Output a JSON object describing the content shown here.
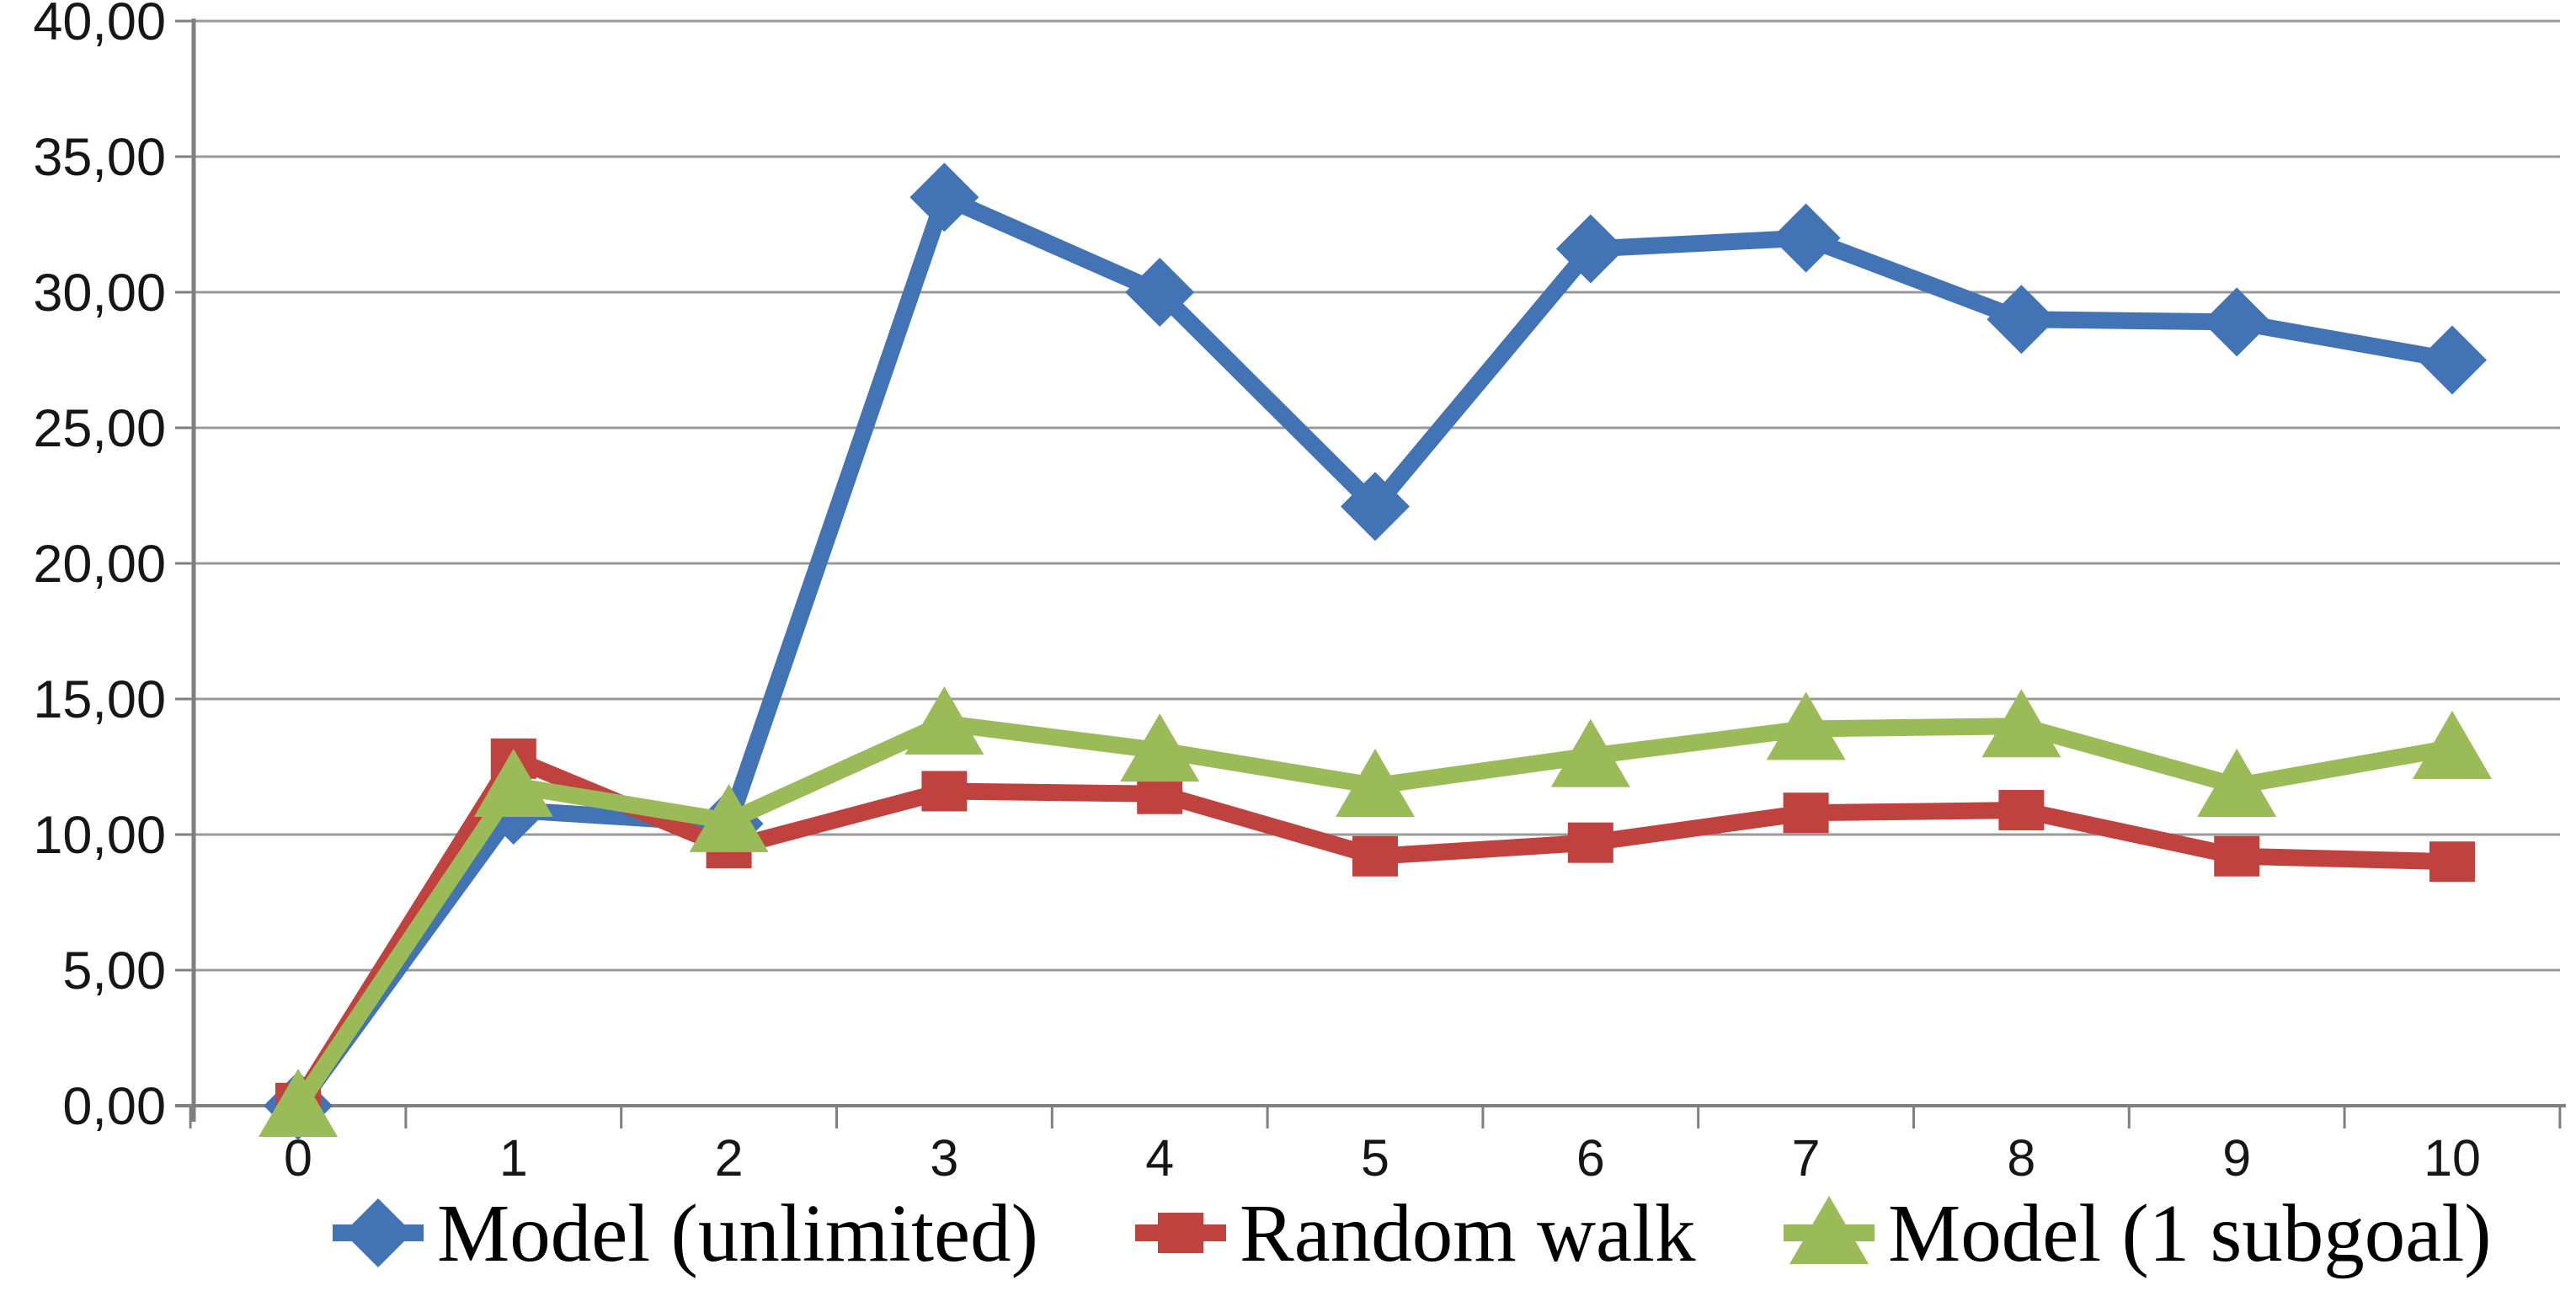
{
  "chart_data": {
    "type": "line",
    "title": "",
    "xlabel": "",
    "ylabel": "",
    "categories": [
      "0",
      "1",
      "2",
      "3",
      "4",
      "5",
      "6",
      "7",
      "8",
      "9",
      "10"
    ],
    "y_axis": {
      "min": 0,
      "max": 40,
      "step": 5,
      "tick_labels": [
        "0,00",
        "5,00",
        "10,00",
        "15,00",
        "20,00",
        "25,00",
        "30,00",
        "35,00",
        "40,00"
      ],
      "number_format": "decimal-comma"
    },
    "grid": "horizontal",
    "legend_position": "bottom",
    "series": [
      {
        "name": "Model (unlimited)",
        "color": "#4273b4",
        "marker": "diamond",
        "values": [
          0.0,
          10.9,
          10.4,
          33.5,
          30.0,
          22.1,
          31.6,
          32.0,
          29.0,
          28.9,
          27.5
        ]
      },
      {
        "name": "Random walk",
        "color": "#c0423e",
        "marker": "square",
        "values": [
          0.1,
          12.8,
          9.5,
          11.6,
          11.5,
          9.2,
          9.7,
          10.8,
          10.9,
          9.2,
          9.0
        ]
      },
      {
        "name": "Model (1 subgoal)",
        "color": "#9bbb59",
        "marker": "triangle",
        "values": [
          0.0,
          11.8,
          10.5,
          14.1,
          13.1,
          11.8,
          12.9,
          13.9,
          14.0,
          11.8,
          13.2
        ]
      }
    ],
    "colors": {
      "gridline": "#999999",
      "axis": "#7f7f7f",
      "tick_text": "#161616",
      "legend_text": "#000000",
      "background": "#ffffff"
    }
  }
}
